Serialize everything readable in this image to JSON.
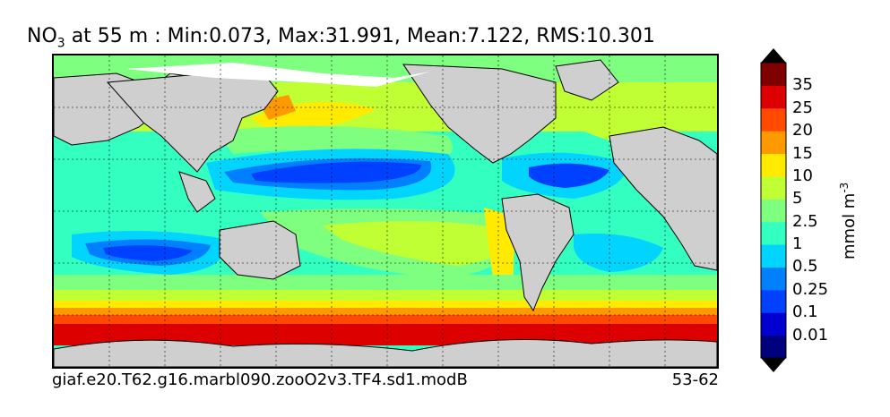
{
  "title": {
    "species_main": "NO",
    "species_sub": "3",
    "rest": " at 55 m : Min:0.073, Max:31.991, Mean:7.122, RMS:10.301"
  },
  "caption": {
    "case_name": "giaf.e20.T62.g16.marbl090.zooO2v3.TF4.sd1.modB",
    "years": "53-62"
  },
  "colorbar": {
    "unit_main": "mmol m",
    "unit_sup": "-3",
    "levels": [
      "0.01",
      "0.1",
      "0.25",
      "0.5",
      "1",
      "2.5",
      "5",
      "10",
      "15",
      "20",
      "25",
      "35"
    ],
    "colors": [
      "#00007f",
      "#0000d0",
      "#0040ff",
      "#0080ff",
      "#00d4ff",
      "#33ffc0",
      "#7fff7f",
      "#c0ff33",
      "#ffea00",
      "#ff9900",
      "#ff4a00",
      "#dc0000",
      "#800000"
    ]
  },
  "map": {
    "land_color": "#cfcfcf",
    "grid": "dashed"
  }
}
